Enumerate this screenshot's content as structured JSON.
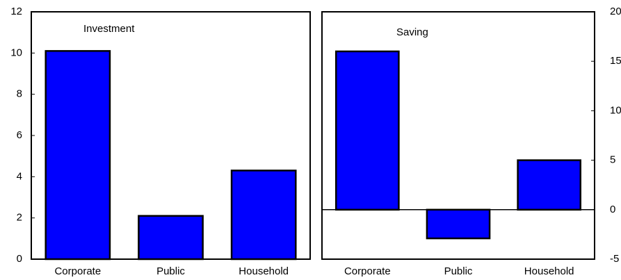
{
  "chart_data": [
    {
      "type": "bar",
      "title": "Investment",
      "categories": [
        "Corporate",
        "Public",
        "Household"
      ],
      "values": [
        10.1,
        2.1,
        4.3
      ],
      "color": "#0000ff",
      "ylim": [
        0,
        12
      ],
      "yticks": [
        0,
        2,
        4,
        6,
        8,
        10,
        12
      ],
      "y_axis_side": "left"
    },
    {
      "type": "bar",
      "title": "Saving",
      "categories": [
        "Corporate",
        "Public",
        "Household"
      ],
      "values": [
        16,
        -2.9,
        5
      ],
      "color": "#0000ff",
      "ylim": [
        -5,
        20
      ],
      "yticks": [
        -5,
        0,
        5,
        10,
        15,
        20
      ],
      "y_axis_side": "right"
    }
  ]
}
